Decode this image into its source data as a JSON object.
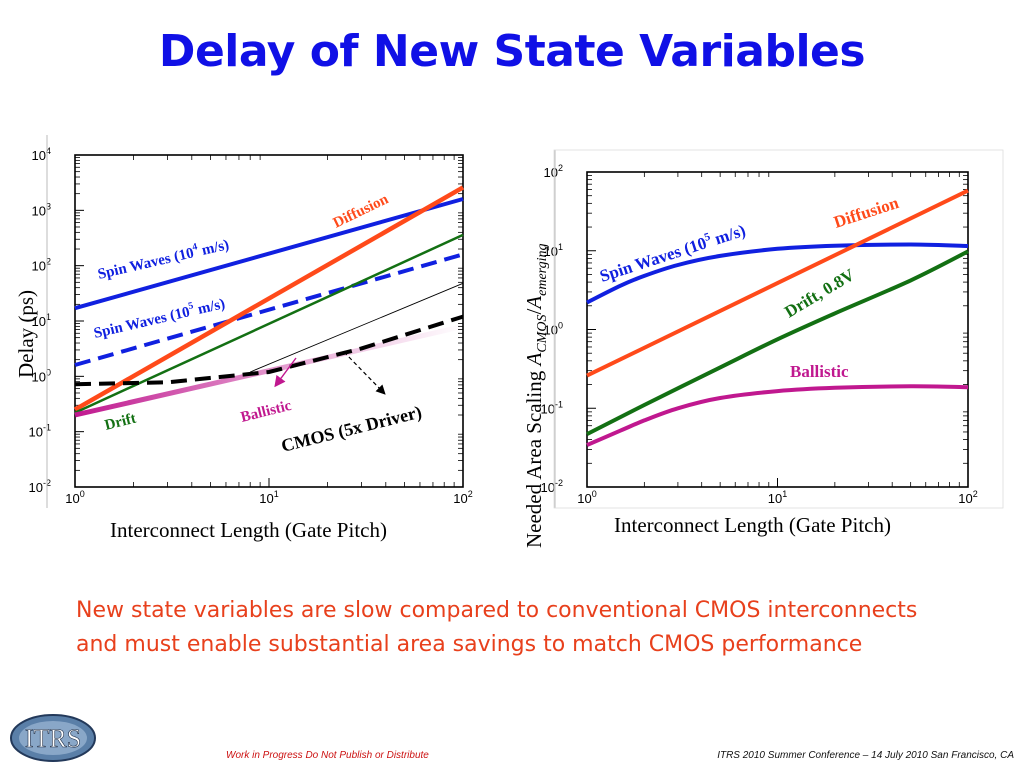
{
  "title": "Delay of New State Variables",
  "caption": "New state variables are slow compared to conventional CMOS interconnects and must enable substantial area savings to match CMOS performance",
  "footer": {
    "left": "Work in Progress   Do Not Publish or Distribute",
    "right": "ITRS 2010 Summer Conference – 14 July 2010 San Francisco, CA"
  },
  "logo": {
    "text": "ITRS"
  },
  "colors": {
    "title": "#1010e6",
    "caption": "#e8401c",
    "blue": "#1020e0",
    "orange": "#ff4a1a",
    "green": "#137013",
    "magenta": "#c0188f",
    "black": "#000000"
  },
  "chart_data": [
    {
      "type": "line",
      "xlabel": "Interconnect Length (Gate Pitch)",
      "ylabel": "Delay (ps)",
      "xscale": "log",
      "yscale": "log",
      "xlim": [
        1,
        100
      ],
      "ylim": [
        0.01,
        10000
      ],
      "xticks": [
        {
          "base": "10",
          "exp": "0"
        },
        {
          "base": "10",
          "exp": "1"
        },
        {
          "base": "10",
          "exp": "2"
        }
      ],
      "yticks": [
        {
          "base": "10",
          "exp": "-2"
        },
        {
          "base": "10",
          "exp": "-1"
        },
        {
          "base": "10",
          "exp": "0"
        },
        {
          "base": "10",
          "exp": "1"
        },
        {
          "base": "10",
          "exp": "2"
        },
        {
          "base": "10",
          "exp": "3"
        },
        {
          "base": "10",
          "exp": "4"
        }
      ],
      "series": [
        {
          "name": "Spin Waves (10⁴ m/s)",
          "color": "#1020e0",
          "style": "solid",
          "x": [
            1,
            100
          ],
          "y": [
            17,
            1600
          ]
        },
        {
          "name": "Spin Waves (10⁵ m/s)",
          "color": "#1020e0",
          "style": "dashed",
          "x": [
            1,
            100
          ],
          "y": [
            1.6,
            160
          ]
        },
        {
          "name": "Diffusion",
          "color": "#ff4a1a",
          "style": "solid",
          "x": [
            1,
            100
          ],
          "y": [
            0.25,
            2600
          ]
        },
        {
          "name": "Drift",
          "color": "#137013",
          "style": "solid",
          "x": [
            1,
            100
          ],
          "y": [
            0.22,
            360
          ]
        },
        {
          "name": "Ballistic",
          "color": "#c0188f",
          "style": "fade",
          "x": [
            1,
            100
          ],
          "y": [
            0.2,
            8
          ]
        },
        {
          "name": "",
          "color": "#000000",
          "style": "thin",
          "x": [
            8,
            100
          ],
          "y": [
            1.2,
            48
          ]
        },
        {
          "name": "CMOS (5x Driver)",
          "color": "#000000",
          "style": "dashed",
          "x": [
            1,
            3,
            10,
            30,
            100
          ],
          "y": [
            0.72,
            0.78,
            1.2,
            3.2,
            12
          ]
        }
      ],
      "annotations": [
        {
          "text": "Spin Waves (10",
          "sup": "4",
          "tail": " m/s)",
          "color": "#1020e0"
        },
        {
          "text": "Spin Waves (10",
          "sup": "5",
          "tail": " m/s)",
          "color": "#1020e0"
        },
        {
          "text": "Diffusion",
          "color": "#ff4a1a"
        },
        {
          "text": "Drift",
          "color": "#137013"
        },
        {
          "text": "Ballistic",
          "color": "#c0188f"
        },
        {
          "text": "CMOS (5x Driver)",
          "color": "#000000"
        }
      ]
    },
    {
      "type": "line",
      "xlabel": "Interconnect Length (Gate Pitch)",
      "ylabel": {
        "text": "Needed Area Scaling ",
        "a1": "A",
        "sub1": "CMOS",
        "sep": "/",
        "a2": "A",
        "sub2": "emerging"
      },
      "xscale": "log",
      "yscale": "log",
      "xlim": [
        1,
        100
      ],
      "ylim": [
        0.01,
        100
      ],
      "xticks": [
        {
          "base": "10",
          "exp": "0"
        },
        {
          "base": "10",
          "exp": "1"
        },
        {
          "base": "10",
          "exp": "2"
        }
      ],
      "yticks": [
        {
          "base": "10",
          "exp": "-2"
        },
        {
          "base": "10",
          "exp": "-1"
        },
        {
          "base": "10",
          "exp": "0"
        },
        {
          "base": "10",
          "exp": "1"
        },
        {
          "base": "10",
          "exp": "2"
        }
      ],
      "series": [
        {
          "name": "Spin Waves (10⁵ m/s)",
          "color": "#1020e0",
          "x": [
            1,
            1.5,
            2,
            3,
            5,
            10,
            20,
            50,
            100
          ],
          "y": [
            2.2,
            3.6,
            4.8,
            6.6,
            8.6,
            10.6,
            11.6,
            12.0,
            11.5
          ]
        },
        {
          "name": "Diffusion",
          "color": "#ff4a1a",
          "x": [
            1,
            100
          ],
          "y": [
            0.26,
            58
          ]
        },
        {
          "name": "Drift, 0.8V",
          "color": "#137013",
          "x": [
            1,
            2,
            5,
            10,
            20,
            50,
            100
          ],
          "y": [
            0.047,
            0.11,
            0.33,
            0.75,
            1.6,
            4.2,
            9.8
          ]
        },
        {
          "name": "Ballistic",
          "color": "#c0188f",
          "x": [
            1,
            1.5,
            2,
            3,
            5,
            10,
            20,
            50,
            100
          ],
          "y": [
            0.034,
            0.052,
            0.07,
            0.1,
            0.135,
            0.165,
            0.182,
            0.19,
            0.185
          ]
        }
      ],
      "annotations": [
        {
          "text": "Spin Waves (10",
          "sup": "5",
          "tail": " m/s)",
          "color": "#1020e0"
        },
        {
          "text": "Diffusion",
          "color": "#ff4a1a"
        },
        {
          "text": "Drift, 0.8V",
          "color": "#137013"
        },
        {
          "text": "Ballistic",
          "color": "#c0188f"
        }
      ]
    }
  ]
}
